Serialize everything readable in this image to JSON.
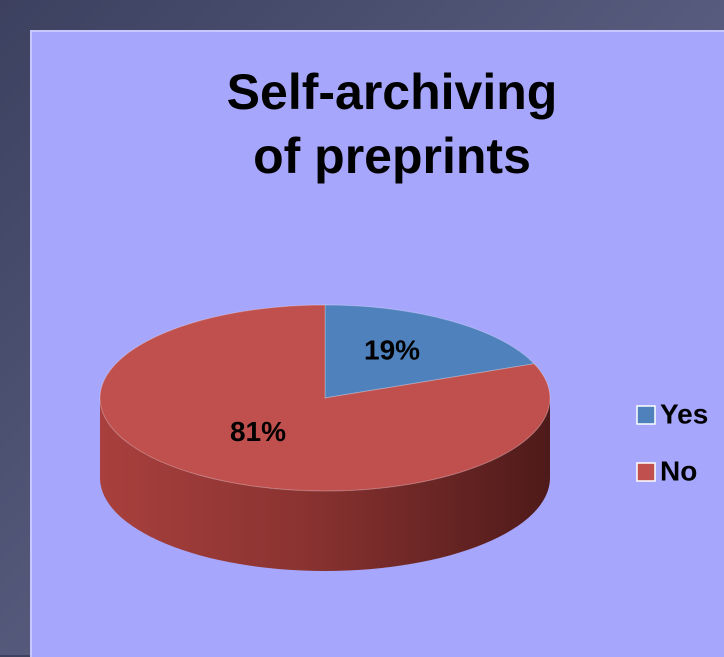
{
  "chart_data": {
    "type": "pie",
    "title": "Self-archiving of preprints",
    "categories": [
      "Yes",
      "No"
    ],
    "values": [
      19,
      81
    ],
    "value_labels": [
      "19%",
      "81%"
    ],
    "colors": [
      "#4f81bd",
      "#c0504d"
    ],
    "legend": "right"
  }
}
